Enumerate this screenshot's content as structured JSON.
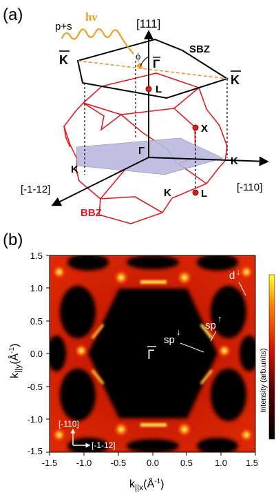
{
  "panel_a": {
    "label": "(a)",
    "polarization": "p+s",
    "photon": "hν",
    "axis_111": "[111]",
    "axis_m1m12": "[-1-12]",
    "axis_m110": "[-110]",
    "sbz": "SBZ",
    "bbz": "BBZ",
    "phi": "ϕ",
    "gamma_bar": "Γ",
    "k_bar_left": "K",
    "k_bar_right": "K",
    "point_L_top": "L",
    "point_X": "X",
    "point_L_bottom": "L",
    "point_Gamma": "Γ",
    "point_K_left": "K",
    "point_K_right": "K",
    "point_K_bottom": "K",
    "colors": {
      "bbz": "#e31b23",
      "photon": "#f39c1f",
      "sbz": "#000000",
      "plane": "#b9b8de",
      "dashed": "#f0912a"
    }
  },
  "panel_b": {
    "label": "(b)",
    "ylabel_main": "k",
    "ylabel_sub": "||y",
    "ylabel_unit": "(Å",
    "ylabel_unit_exp": "-1",
    "ylabel_unit_close": ")",
    "xlabel_main": "k",
    "xlabel_sub": "||x",
    "xlabel_unit": "(Å",
    "xlabel_unit_exp": "-1",
    "xlabel_unit_close": ")",
    "colorbar_label": "Intensity (arb.units)",
    "gamma_bar": "Γ",
    "label_d": "d",
    "label_sp_up": "sp",
    "label_sp_down": "sp",
    "arrow_up": "↑",
    "arrow_down": "↓",
    "dir_110": "[-110]",
    "dir_112": "[-1-12]"
  },
  "chart_data": {
    "type": "heatmap",
    "xlabel": "k||x (Å-1)",
    "ylabel": "k||y (Å-1)",
    "xlim": [
      -1.5,
      1.5
    ],
    "ylim": [
      -1.5,
      1.5
    ],
    "xticks": [
      "-1.5",
      "-1.0",
      "-0.5",
      "0.0",
      "0.5",
      "1.0",
      "1.5"
    ],
    "yticks": [
      "1.5",
      "1.0",
      "0.5",
      "0.0",
      "-0.5",
      "-1.0",
      "-1.5"
    ],
    "colorbar": "Intensity (arb.units)",
    "colormap": "black-red-yellow"
  }
}
